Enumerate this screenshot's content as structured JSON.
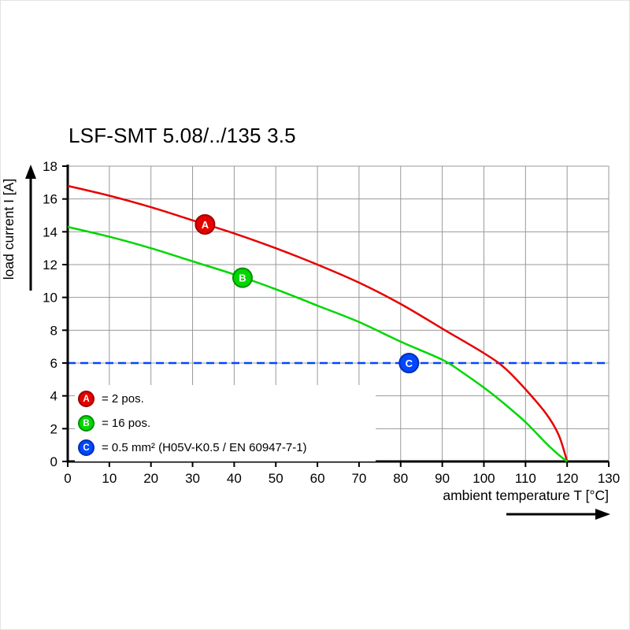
{
  "chart": {
    "title": "LSF-SMT 5.08/../135 3.5",
    "xlabel": "ambient temperature T [°C]",
    "ylabel": "load current I [A]"
  },
  "legend": {
    "items": [
      {
        "letter": "A",
        "label": "= 2 pos.",
        "color": "#e60000",
        "border": "#9d0000"
      },
      {
        "letter": "B",
        "label": "= 16 pos.",
        "color": "#00d600",
        "border": "#008f00"
      },
      {
        "letter": "C",
        "label": "= 0.5 mm² (H05V-K0.5 / EN 60947-7-1)",
        "color": "#0047ff",
        "border": "#002fb0"
      }
    ]
  },
  "chart_data": {
    "type": "line",
    "title": "LSF-SMT 5.08/../135 3.5",
    "xlabel": "ambient temperature T [°C]",
    "ylabel": "load current I [A]",
    "xlim": [
      0,
      130
    ],
    "ylim": [
      0,
      18
    ],
    "xticks": [
      0,
      10,
      20,
      30,
      40,
      50,
      60,
      70,
      80,
      90,
      100,
      110,
      120,
      130
    ],
    "yticks": [
      0,
      2,
      4,
      6,
      8,
      10,
      12,
      14,
      16,
      18
    ],
    "grid": true,
    "grid_color": "#999999",
    "axis_color": "#000000",
    "legend_position": "lower-left",
    "series": [
      {
        "name": "A",
        "label": "2 pos.",
        "color": "#e60000",
        "x": [
          0,
          10,
          20,
          30,
          40,
          50,
          60,
          70,
          80,
          90,
          100,
          105,
          110,
          115,
          118,
          120
        ],
        "y": [
          16.8,
          16.2,
          15.5,
          14.7,
          13.9,
          13.0,
          12.0,
          10.9,
          9.6,
          8.1,
          6.6,
          5.7,
          4.4,
          2.9,
          1.6,
          0
        ]
      },
      {
        "name": "B",
        "label": "16 pos.",
        "color": "#00d600",
        "x": [
          0,
          10,
          20,
          30,
          40,
          50,
          60,
          70,
          80,
          90,
          95,
          100,
          105,
          110,
          115,
          118,
          120
        ],
        "y": [
          14.3,
          13.7,
          13.0,
          12.2,
          11.4,
          10.5,
          9.5,
          8.5,
          7.3,
          6.2,
          5.4,
          4.5,
          3.5,
          2.4,
          1.1,
          0.4,
          0
        ]
      }
    ],
    "reference_line": {
      "name": "C",
      "label": "0.5 mm² (H05V-K0.5 / EN 60947-7-1)",
      "color": "#0047ff",
      "y": 6,
      "style": "dashed"
    },
    "markers": [
      {
        "letter": "A",
        "x": 33,
        "y": 14.45,
        "color": "#e60000",
        "border": "#9d0000"
      },
      {
        "letter": "B",
        "x": 42,
        "y": 11.2,
        "color": "#00d600",
        "border": "#008f00"
      },
      {
        "letter": "C",
        "x": 82,
        "y": 6,
        "color": "#0047ff",
        "border": "#002fb0"
      }
    ]
  }
}
